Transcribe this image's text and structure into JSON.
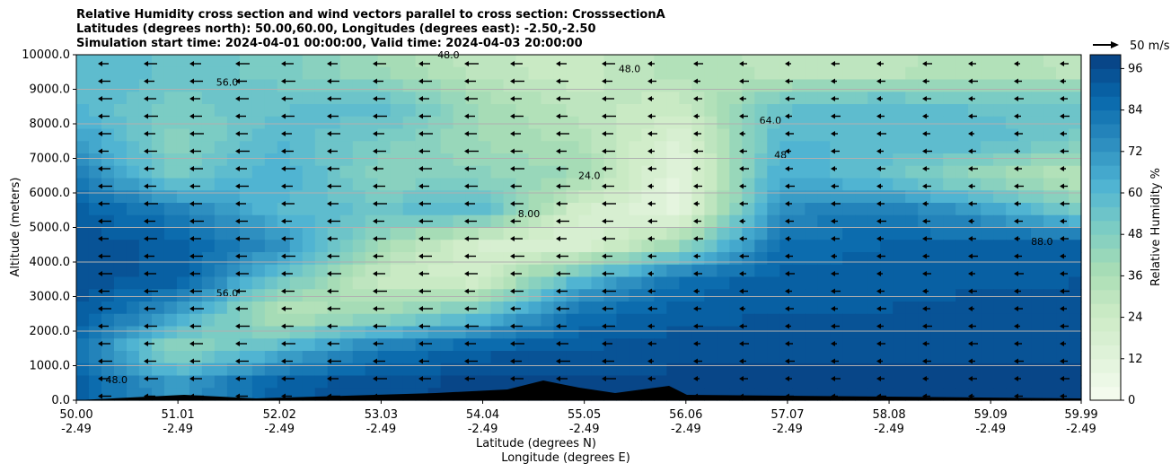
{
  "chart_data": {
    "type": "heatmap",
    "title_lines": [
      "Relative Humidity cross section and wind vectors parallel to cross section: CrosssectionA",
      "Latitudes (degrees north): 50.00,60.00, Longitudes (degrees east): -2.50,-2.50",
      "Simulation start time: 2024-04-01 00:00:00, Valid time: 2024-04-03 20:00:00"
    ],
    "xlabel": "Latitude (degrees N)",
    "xlabel2": "Longitude (degrees E)",
    "ylabel": "Altitude (meters)",
    "xlim": [
      50.0,
      59.99
    ],
    "ylim": [
      0,
      10000
    ],
    "x_ticks": [
      {
        "lat": 50.0,
        "label": "50.00",
        "lon": "-2.49"
      },
      {
        "lat": 51.01,
        "label": "51.01",
        "lon": "-2.49"
      },
      {
        "lat": 52.02,
        "label": "52.02",
        "lon": "-2.49"
      },
      {
        "lat": 53.03,
        "label": "53.03",
        "lon": "-2.49"
      },
      {
        "lat": 54.04,
        "label": "54.04",
        "lon": "-2.49"
      },
      {
        "lat": 55.05,
        "label": "55.05",
        "lon": "-2.49"
      },
      {
        "lat": 56.06,
        "label": "56.06",
        "lon": "-2.49"
      },
      {
        "lat": 57.07,
        "label": "57.07",
        "lon": "-2.49"
      },
      {
        "lat": 58.08,
        "label": "58.08",
        "lon": "-2.49"
      },
      {
        "lat": 59.09,
        "label": "59.09",
        "lon": "-2.49"
      },
      {
        "lat": 59.99,
        "label": "59.99",
        "lon": "-2.49"
      }
    ],
    "y_ticks": [
      "0.0",
      "1000.0",
      "2000.0",
      "3000.0",
      "4000.0",
      "5000.0",
      "6000.0",
      "7000.0",
      "8000.0",
      "9000.0",
      "10000.0"
    ],
    "grid": "horizontal",
    "grid_lats": [
      50,
      51,
      52,
      53,
      54,
      55,
      56,
      57,
      58,
      59,
      60
    ],
    "grid_alts": [
      500,
      1500,
      2500,
      3500,
      4500,
      5500,
      6500,
      7500,
      8500,
      9500
    ],
    "rh_values": [
      [
        90,
        70,
        90,
        95,
        97,
        97,
        97,
        97,
        97,
        97,
        97
      ],
      [
        85,
        40,
        60,
        80,
        90,
        92,
        95,
        95,
        95,
        95,
        95
      ],
      [
        92,
        70,
        30,
        40,
        55,
        85,
        90,
        92,
        92,
        95,
        95
      ],
      [
        95,
        90,
        55,
        25,
        20,
        60,
        85,
        90,
        90,
        90,
        92
      ],
      [
        95,
        90,
        75,
        40,
        20,
        15,
        40,
        85,
        88,
        88,
        90
      ],
      [
        90,
        80,
        60,
        55,
        60,
        20,
        10,
        75,
        80,
        70,
        50
      ],
      [
        80,
        50,
        65,
        45,
        45,
        40,
        10,
        65,
        55,
        40,
        30
      ],
      [
        70,
        45,
        60,
        50,
        40,
        35,
        15,
        60,
        60,
        60,
        50
      ],
      [
        60,
        50,
        55,
        60,
        40,
        30,
        25,
        55,
        60,
        55,
        55
      ],
      [
        60,
        55,
        50,
        40,
        30,
        25,
        35,
        30,
        30,
        35,
        30
      ]
    ],
    "contour_labels": [
      {
        "lat": 51.5,
        "alt": 9100,
        "text": "56.0"
      },
      {
        "lat": 54.5,
        "alt": 5300,
        "text": "8.00"
      },
      {
        "lat": 55.1,
        "alt": 6400,
        "text": "24.0"
      },
      {
        "lat": 56.9,
        "alt": 8000,
        "text": "64.0"
      },
      {
        "lat": 57.0,
        "alt": 7000,
        "text": "48"
      },
      {
        "lat": 59.6,
        "alt": 4500,
        "text": "88.0"
      },
      {
        "lat": 51.5,
        "alt": 3000,
        "text": "56.0"
      },
      {
        "lat": 50.4,
        "alt": 500,
        "text": "48.0"
      },
      {
        "lat": 53.7,
        "alt": 9900,
        "text": "48.0"
      },
      {
        "lat": 55.5,
        "alt": 9500,
        "text": "48.0"
      }
    ],
    "colorbar": {
      "label": "Relative Humidity %",
      "levels_min": 0,
      "levels_max": 100,
      "level_step": 4,
      "ticks": [
        "0",
        "12",
        "24",
        "36",
        "48",
        "60",
        "72",
        "84",
        "96"
      ],
      "colormap": [
        "#f7fcf0",
        "#e0f3db",
        "#ccebc5",
        "#a8ddb5",
        "#7bccc4",
        "#4eb3d3",
        "#2b8cbe",
        "#0868ac",
        "#084081"
      ]
    },
    "wind_reference": {
      "label": "50 m/s",
      "value": 50
    }
  }
}
